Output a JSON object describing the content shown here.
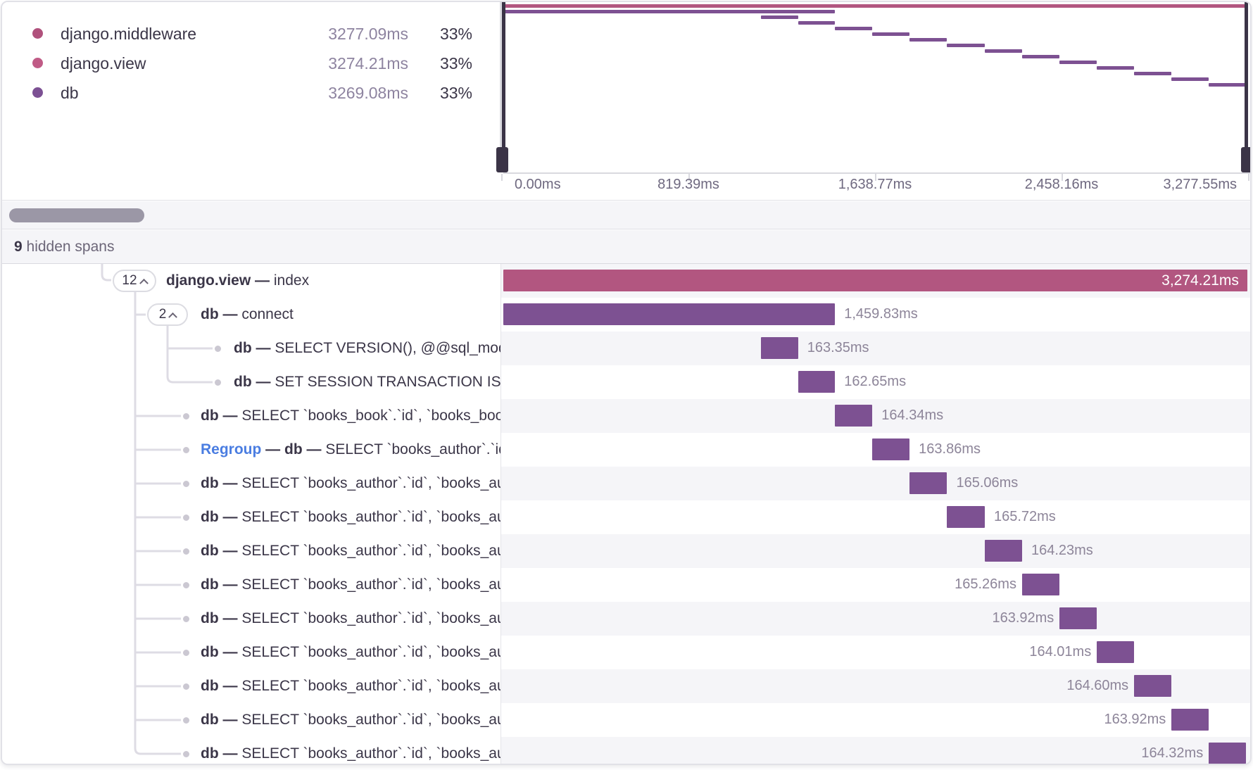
{
  "legend": {
    "items": [
      {
        "name": "django.middleware",
        "time": "3277.09ms",
        "percent": "33%",
        "color": "#b0517c"
      },
      {
        "name": "django.view",
        "time": "3274.21ms",
        "percent": "33%",
        "color": "#c05b86"
      },
      {
        "name": "db",
        "time": "3269.08ms",
        "percent": "33%",
        "color": "#7c5093"
      }
    ]
  },
  "minimap": {
    "total_ms": 3277.55,
    "axis_labels": [
      "0.00ms",
      "819.39ms",
      "1,638.77ms",
      "2,458.16ms",
      "3,277.55ms"
    ]
  },
  "hidden_spans": {
    "count": "9",
    "label": " hidden spans"
  },
  "colors": {
    "pink": "#b25680",
    "purple": "#7d5192",
    "blue": "#4a7de1"
  },
  "spans": [
    {
      "depth": 0,
      "toggle": "12",
      "parts": [
        {
          "t": "django.view",
          "s": "bold"
        },
        {
          "t": " — ",
          "s": "bold"
        },
        {
          "t": "index"
        }
      ],
      "time": "3,274.21ms",
      "start_ms": 0,
      "dur_ms": 3274.21,
      "color": "pink",
      "label_pos": "inside"
    },
    {
      "depth": 1,
      "toggle": "2",
      "parts": [
        {
          "t": "db",
          "s": "bold"
        },
        {
          "t": " — ",
          "s": "bold"
        },
        {
          "t": "connect"
        }
      ],
      "time": "1,459.83ms",
      "start_ms": 0,
      "dur_ms": 1459.83,
      "color": "purple",
      "label_pos": "right"
    },
    {
      "depth": 2,
      "dot": true,
      "parts": [
        {
          "t": "db",
          "s": "bold"
        },
        {
          "t": " — ",
          "s": "bold"
        },
        {
          "t": "SELECT VERSION(), @@sql_mode"
        }
      ],
      "time": "163.35ms",
      "start_ms": 1133.83,
      "dur_ms": 163.35,
      "color": "purple",
      "label_pos": "right"
    },
    {
      "depth": 2,
      "dot": true,
      "parts": [
        {
          "t": "db",
          "s": "bold"
        },
        {
          "t": " — ",
          "s": "bold"
        },
        {
          "t": "SET SESSION TRANSACTION ISOLATION LEVEL READ COMMITTED"
        }
      ],
      "time": "162.65ms",
      "start_ms": 1297.18,
      "dur_ms": 162.65,
      "color": "purple",
      "label_pos": "right"
    },
    {
      "depth": 1,
      "dot": true,
      "parts": [
        {
          "t": "db",
          "s": "bold"
        },
        {
          "t": " — ",
          "s": "bold"
        },
        {
          "t": "SELECT `books_book`.`id`, `books_book`.`title` FROM `books_book`"
        }
      ],
      "time": "164.34ms",
      "start_ms": 1459.83,
      "dur_ms": 164.34,
      "color": "purple",
      "label_pos": "right"
    },
    {
      "depth": 1,
      "dot": true,
      "parts": [
        {
          "t": "Regroup",
          "s": "blue"
        },
        {
          "t": " — ",
          "s": "bold"
        },
        {
          "t": "db",
          "s": "bold"
        },
        {
          "t": " — ",
          "s": "bold"
        },
        {
          "t": "SELECT `books_author`.`id`, `books_author`.`name` FROM `books_author`"
        }
      ],
      "time": "163.86ms",
      "start_ms": 1624.17,
      "dur_ms": 163.86,
      "color": "purple",
      "label_pos": "right"
    },
    {
      "depth": 1,
      "dot": true,
      "parts": [
        {
          "t": "db",
          "s": "bold"
        },
        {
          "t": " — ",
          "s": "bold"
        },
        {
          "t": "SELECT `books_author`.`id`, `books_author`.`name` FROM `books_author` WHERE `books_author`.`id` = %s"
        }
      ],
      "time": "165.06ms",
      "start_ms": 1788.03,
      "dur_ms": 165.06,
      "color": "purple",
      "label_pos": "right"
    },
    {
      "depth": 1,
      "dot": true,
      "parts": [
        {
          "t": "db",
          "s": "bold"
        },
        {
          "t": " — ",
          "s": "bold"
        },
        {
          "t": "SELECT `books_author`.`id`, `books_author`.`name` FROM `books_author` WHERE `books_author`.`id` = %s"
        }
      ],
      "time": "165.72ms",
      "start_ms": 1953.09,
      "dur_ms": 165.72,
      "color": "purple",
      "label_pos": "right"
    },
    {
      "depth": 1,
      "dot": true,
      "parts": [
        {
          "t": "db",
          "s": "bold"
        },
        {
          "t": " — ",
          "s": "bold"
        },
        {
          "t": "SELECT `books_author`.`id`, `books_author`.`name` FROM `books_author` WHERE `books_author`.`id` = %s"
        }
      ],
      "time": "164.23ms",
      "start_ms": 2118.81,
      "dur_ms": 164.23,
      "color": "purple",
      "label_pos": "right"
    },
    {
      "depth": 1,
      "dot": true,
      "parts": [
        {
          "t": "db",
          "s": "bold"
        },
        {
          "t": " — ",
          "s": "bold"
        },
        {
          "t": "SELECT `books_author`.`id`, `books_author`.`name` FROM `books_author` WHERE `books_author`.`id` = %s"
        }
      ],
      "time": "165.26ms",
      "start_ms": 2283.04,
      "dur_ms": 165.26,
      "color": "purple",
      "label_pos": "left"
    },
    {
      "depth": 1,
      "dot": true,
      "parts": [
        {
          "t": "db",
          "s": "bold"
        },
        {
          "t": " — ",
          "s": "bold"
        },
        {
          "t": "SELECT `books_author`.`id`, `books_author`.`name` FROM `books_author` WHERE `books_author`.`id` = %s"
        }
      ],
      "time": "163.92ms",
      "start_ms": 2448.3,
      "dur_ms": 163.92,
      "color": "purple",
      "label_pos": "left"
    },
    {
      "depth": 1,
      "dot": true,
      "parts": [
        {
          "t": "db",
          "s": "bold"
        },
        {
          "t": " — ",
          "s": "bold"
        },
        {
          "t": "SELECT `books_author`.`id`, `books_author`.`name` FROM `books_author` WHERE `books_author`.`id` = %s"
        }
      ],
      "time": "164.01ms",
      "start_ms": 2612.22,
      "dur_ms": 164.01,
      "color": "purple",
      "label_pos": "left"
    },
    {
      "depth": 1,
      "dot": true,
      "parts": [
        {
          "t": "db",
          "s": "bold"
        },
        {
          "t": " — ",
          "s": "bold"
        },
        {
          "t": "SELECT `books_author`.`id`, `books_author`.`name` FROM `books_author` WHERE `books_author`.`id` = %s"
        }
      ],
      "time": "164.60ms",
      "start_ms": 2776.23,
      "dur_ms": 164.6,
      "color": "purple",
      "label_pos": "left"
    },
    {
      "depth": 1,
      "dot": true,
      "parts": [
        {
          "t": "db",
          "s": "bold"
        },
        {
          "t": " — ",
          "s": "bold"
        },
        {
          "t": "SELECT `books_author`.`id`, `books_author`.`name` FROM `books_author` WHERE `books_author`.`id` = %s"
        }
      ],
      "time": "163.92ms",
      "start_ms": 2940.83,
      "dur_ms": 163.92,
      "color": "purple",
      "label_pos": "left"
    },
    {
      "depth": 1,
      "dot": true,
      "parts": [
        {
          "t": "db",
          "s": "bold"
        },
        {
          "t": " — ",
          "s": "bold"
        },
        {
          "t": "SELECT `books_author`.`id`, `books_author`.`name` FROM `books_author` WHERE `books_author`.`id` = %s"
        }
      ],
      "time": "164.32ms",
      "start_ms": 3104.75,
      "dur_ms": 164.32,
      "color": "purple",
      "label_pos": "left"
    }
  ]
}
